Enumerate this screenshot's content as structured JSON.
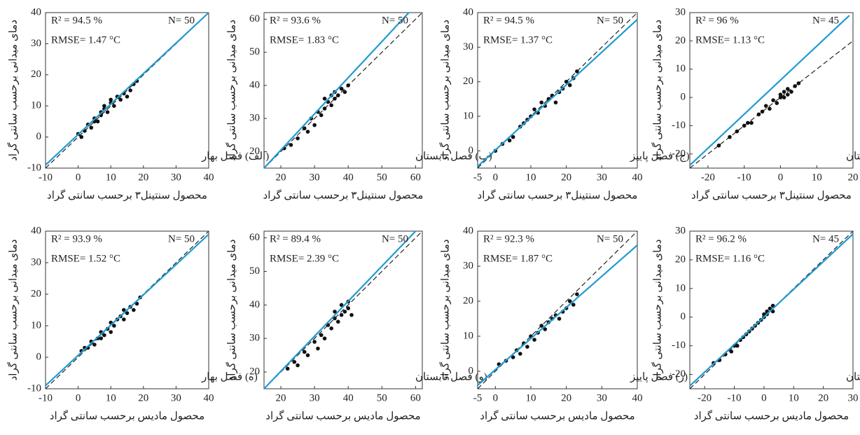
{
  "chart_data": [
    {
      "type": "scatter",
      "title": "(الف) فصل بهار",
      "x_label": "محصول سنتینل۳ برحسب سانتی گراد",
      "y_label": "دمای میدانی برحسب سانتی گراد",
      "stats": {
        "r2": "R² = 94.5 %",
        "n": "N= 50",
        "rmse": "RMSE= 1.47 °C"
      },
      "xlim": [
        -10,
        40
      ],
      "ylim": [
        -10,
        40
      ],
      "xticks": [
        -10,
        0,
        10,
        20,
        30,
        40
      ],
      "yticks": [
        -10,
        0,
        10,
        20,
        30,
        40
      ],
      "identity_line": true,
      "color": "#111111",
      "x": [
        0,
        1,
        2,
        3,
        4,
        5,
        5,
        6,
        7,
        7,
        8,
        8,
        9,
        10,
        10,
        11,
        12,
        13,
        14,
        15,
        16,
        17,
        18
      ],
      "y": [
        1,
        0,
        2,
        4,
        3,
        5,
        6,
        5,
        7,
        8,
        9,
        10,
        8,
        11,
        12,
        10,
        13,
        12,
        14,
        13,
        15,
        17,
        18
      ],
      "fit_line": {
        "color": "#1f9bd1",
        "x": [
          -10,
          40
        ],
        "y": [
          -9,
          40
        ]
      }
    },
    {
      "type": "scatter",
      "title": "(ب) فصل تابستان",
      "x_label": "محصول سنتینل۳ برحسب سانتی گراد",
      "y_label": "دمای میدانی برحسب سانتی گراد",
      "stats": {
        "r2": "R² = 93.6 %",
        "n": "N= 50",
        "rmse": "RMSE= 1.83 °C"
      },
      "xlim": [
        15,
        62
      ],
      "ylim": [
        15,
        62
      ],
      "xticks": [
        20,
        30,
        40,
        50,
        60
      ],
      "yticks": [
        20,
        30,
        40,
        50,
        60
      ],
      "identity_line": true,
      "color": "#111111",
      "x": [
        21,
        23,
        25,
        27,
        28,
        29,
        30,
        31,
        32,
        33,
        33,
        34,
        35,
        35,
        36,
        37,
        38,
        39,
        40,
        36
      ],
      "y": [
        21,
        22,
        24,
        27,
        26,
        30,
        28,
        32,
        31,
        33,
        36,
        35,
        34,
        37,
        38,
        37,
        39,
        38,
        40,
        36
      ],
      "fit_line": {
        "color": "#1f9bd1",
        "x": [
          15,
          58
        ],
        "y": [
          15,
          62
        ]
      }
    },
    {
      "type": "scatter",
      "title": "(ج) فصل پاییز",
      "x_label": "محصول سنتینل۳ برحسب سانتی گراد",
      "y_label": "دمای میدانی برحسب سانتی گراد",
      "stats": {
        "r2": "R² = 94.5 %",
        "n": "N= 50",
        "rmse": "RMSE= 1.37 °C"
      },
      "xlim": [
        -5,
        40
      ],
      "ylim": [
        -5,
        40
      ],
      "xticks": [
        -5,
        0,
        10,
        20,
        30,
        40
      ],
      "yticks": [
        0,
        10,
        20,
        30,
        40
      ],
      "identity_line": true,
      "color": "#111111",
      "x": [
        0,
        2,
        4,
        5,
        7,
        8,
        9,
        10,
        11,
        12,
        13,
        14,
        15,
        16,
        17,
        18,
        19,
        20,
        21,
        22,
        23
      ],
      "y": [
        0,
        2,
        3,
        4,
        7,
        8,
        9,
        10,
        12,
        11,
        14,
        13,
        15,
        16,
        14,
        17,
        18,
        20,
        19,
        21,
        23
      ],
      "fit_line": {
        "color": "#1f9bd1",
        "x": [
          -5,
          40
        ],
        "y": [
          -4.5,
          38
        ]
      }
    },
    {
      "type": "scatter",
      "title": "(د) فصل زمستان",
      "x_label": "محصول سنتینل۳ برحسب سانتی گراد",
      "y_label": "دمای میدانی برحسب سانتی گراد",
      "stats": {
        "r2": "R² = 96 %",
        "n": "N= 45",
        "rmse": "RMSE= 1.13 °C"
      },
      "xlim": [
        -25,
        20
      ],
      "ylim": [
        -25,
        30
      ],
      "xticks": [
        -20,
        -10,
        0,
        10,
        20
      ],
      "yticks": [
        -20,
        -10,
        0,
        10,
        20,
        30
      ],
      "identity_line": true,
      "color": "#111111",
      "x": [
        -17,
        -14,
        -12,
        -10,
        -9,
        -8,
        -6,
        -5,
        -4,
        -3,
        -2,
        -1,
        0,
        0,
        1,
        1,
        2,
        2,
        3,
        4,
        5
      ],
      "y": [
        -17,
        -14,
        -12,
        -10,
        -9,
        -9,
        -6,
        -5,
        -3,
        -4,
        -1,
        -2,
        0,
        1,
        2,
        0,
        3,
        1,
        2,
        4,
        5
      ],
      "fit_line": {
        "color": "#1f9bd1",
        "x": [
          -25,
          19
        ],
        "y": [
          -24,
          29
        ]
      }
    },
    {
      "type": "scatter",
      "title": "(ه) فصل بهار",
      "x_label": "محصول مادیس برحسب سانتی گراد",
      "y_label": "دمای میدانی برحسب سانتی گراد",
      "stats": {
        "r2": "R² = 93.9 %",
        "n": "N= 50",
        "rmse": "RMSE= 1.52 °C"
      },
      "xlim": [
        -10,
        40
      ],
      "ylim": [
        -10,
        40
      ],
      "xticks": [
        -10,
        0,
        10,
        20,
        30,
        40
      ],
      "yticks": [
        -10,
        0,
        10,
        20,
        30,
        40
      ],
      "identity_line": true,
      "color": "#111111",
      "x": [
        1,
        2,
        3,
        4,
        5,
        6,
        7,
        7,
        8,
        9,
        10,
        10,
        11,
        12,
        13,
        14,
        14,
        15,
        16,
        17,
        18,
        19
      ],
      "y": [
        2,
        3,
        3,
        5,
        4,
        6,
        6,
        8,
        7,
        9,
        8,
        11,
        10,
        12,
        13,
        12,
        15,
        14,
        16,
        15,
        17,
        19
      ],
      "fit_line": {
        "color": "#1f9bd1",
        "x": [
          -10,
          40
        ],
        "y": [
          -9,
          39
        ]
      }
    },
    {
      "type": "scatter",
      "title": "(و) فصل تابستان",
      "x_label": "محصول مادیس برحسب سانتی گراد",
      "y_label": "دمای میدانی برحسب سانتی گراد",
      "stats": {
        "r2": "R² = 89.4 %",
        "n": "N= 50",
        "rmse": "RMSE= 2.39 °C"
      },
      "xlim": [
        15,
        62
      ],
      "ylim": [
        15,
        62
      ],
      "xticks": [
        20,
        30,
        40,
        50,
        60
      ],
      "yticks": [
        20,
        30,
        40,
        50,
        60
      ],
      "identity_line": true,
      "color": "#111111",
      "x": [
        22,
        24,
        25,
        27,
        28,
        30,
        31,
        32,
        33,
        34,
        35,
        36,
        36,
        37,
        38,
        38,
        39,
        40,
        40,
        41
      ],
      "y": [
        21,
        23,
        22,
        26,
        25,
        29,
        27,
        31,
        30,
        34,
        33,
        36,
        38,
        35,
        37,
        40,
        38,
        39,
        41,
        37
      ],
      "fit_line": {
        "color": "#1f9bd1",
        "x": [
          15,
          60
        ],
        "y": [
          15,
          62
        ]
      }
    },
    {
      "type": "scatter",
      "title": "(ز) فصل پاییز",
      "x_label": "محصول مادیس برحسب سانتی گراد",
      "y_label": "دمای میدانی برحسب سانتی گراد",
      "stats": {
        "r2": "R² = 92.3 %",
        "n": "N= 50",
        "rmse": "RMSE= 1.87 °C"
      },
      "xlim": [
        -5,
        40
      ],
      "ylim": [
        -5,
        40
      ],
      "xticks": [
        -5,
        0,
        10,
        20,
        30,
        40
      ],
      "yticks": [
        0,
        10,
        20,
        30,
        40
      ],
      "identity_line": true,
      "color": "#111111",
      "x": [
        1,
        3,
        5,
        6,
        7,
        8,
        9,
        10,
        11,
        12,
        13,
        14,
        15,
        16,
        17,
        18,
        19,
        20,
        21,
        22,
        23
      ],
      "y": [
        2,
        3,
        4,
        6,
        5,
        8,
        7,
        10,
        9,
        11,
        13,
        12,
        14,
        15,
        16,
        15,
        17,
        18,
        20,
        19,
        22
      ],
      "fit_line": {
        "color": "#1f9bd1",
        "x": [
          -5,
          40
        ],
        "y": [
          -4,
          36
        ]
      }
    },
    {
      "type": "scatter",
      "title": "(ح) فصل زمستان",
      "x_label": "محصول مادیس برحسب سانتی گراد",
      "y_label": "دمای میدانی برحسب سانتی گراد",
      "stats": {
        "r2": "R² = 96.2 %",
        "n": "N= 45",
        "rmse": "RMSE= 1.16 °C"
      },
      "xlim": [
        -25,
        30
      ],
      "ylim": [
        -25,
        30
      ],
      "xticks": [
        -20,
        -10,
        0,
        10,
        20,
        30
      ],
      "yticks": [
        -20,
        -10,
        0,
        10,
        20,
        30
      ],
      "identity_line": true,
      "color": "#111111",
      "x": [
        -17,
        -15,
        -13,
        -11,
        -10,
        -9,
        -8,
        -7,
        -6,
        -5,
        -4,
        -3,
        -2,
        -1,
        0,
        0,
        1,
        1,
        2,
        3,
        3
      ],
      "y": [
        -16,
        -15,
        -13,
        -12,
        -10,
        -10,
        -8,
        -7,
        -6,
        -5,
        -4,
        -3,
        -2,
        -1,
        0,
        1,
        1,
        2,
        3,
        2,
        4
      ],
      "fit_line": {
        "color": "#1f9bd1",
        "x": [
          -25,
          30
        ],
        "y": [
          -24,
          29
        ]
      }
    }
  ]
}
